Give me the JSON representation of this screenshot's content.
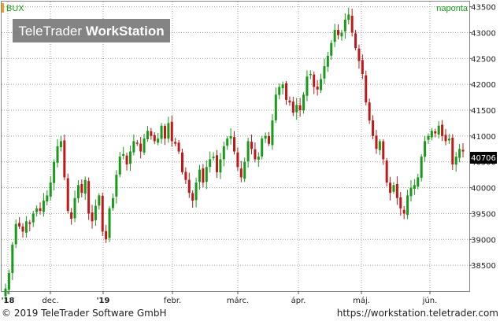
{
  "header": {
    "symbol": "BUX",
    "period": "naponta"
  },
  "watermark": {
    "part1": "TeleTrader",
    "part2": "WorkStation"
  },
  "footer": {
    "copyright": "© 2019 TeleTrader Software GmbH",
    "url": "https://workstation.teletrader.com"
  },
  "colors": {
    "up": "#1a9a1a",
    "down": "#c01818",
    "grid": "#9aa39a",
    "symbol_marker": "#f0a020",
    "period_text": "#1a9a1a",
    "watermark_bg": "#6e6e6e"
  },
  "chart_data": {
    "type": "candlestick",
    "period": "naponta",
    "ylim": [
      38000,
      43600
    ],
    "y_ticks": [
      38500,
      39000,
      39500,
      40000,
      40500,
      41000,
      41500,
      42000,
      42500,
      43000,
      43500
    ],
    "x_ticks": [
      "'18",
      "dec.",
      "'19",
      "febr.",
      "márc.",
      "ápr.",
      "máj.",
      "jún."
    ],
    "last_price": "40706",
    "closes": [
      38050,
      38350,
      38900,
      39300,
      39250,
      39150,
      39350,
      39300,
      39500,
      39600,
      39550,
      39750,
      39850,
      40100,
      40500,
      40800,
      40900,
      40200,
      39550,
      39400,
      39800,
      40050,
      39900,
      40150,
      39500,
      39350,
      39650,
      39850,
      39150,
      39000,
      39600,
      39800,
      40250,
      40600,
      40650,
      40450,
      40700,
      40900,
      40850,
      40700,
      40950,
      41100,
      41000,
      40900,
      40950,
      41200,
      40950,
      41250,
      40900,
      40850,
      40700,
      40300,
      40150,
      39900,
      39750,
      40100,
      40350,
      40100,
      40400,
      40550,
      40600,
      40300,
      40550,
      40800,
      40950,
      41000,
      40700,
      40400,
      40200,
      40500,
      40900,
      40750,
      40550,
      40600,
      40950,
      41000,
      40850,
      41300,
      41800,
      41950,
      42000,
      41700,
      41650,
      41450,
      41600,
      41500,
      41800,
      42150,
      42200,
      41950,
      41900,
      42100,
      42350,
      42550,
      42800,
      43050,
      42950,
      43000,
      43250,
      43350,
      43000,
      42700,
      42450,
      42200,
      41650,
      41300,
      41000,
      40750,
      40900,
      40550,
      40100,
      39900,
      40050,
      39800,
      39600,
      39500,
      39850,
      40000,
      40050,
      40200,
      40600,
      40900,
      41000,
      41100,
      41050,
      41200,
      41000,
      40900,
      40950,
      40450,
      40600,
      40750,
      40700
    ]
  }
}
